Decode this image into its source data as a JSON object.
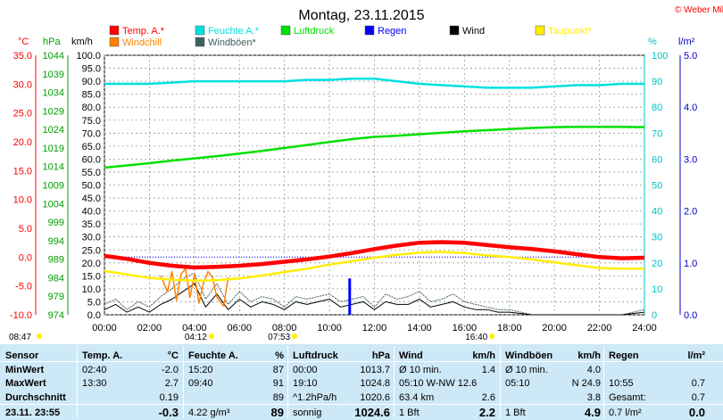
{
  "chart_data": {
    "type": "line",
    "title": "Montag, 23.11.2015",
    "copyright": "© Weber Mike",
    "axis_units": {
      "temp": "°C",
      "pressure": "hPa",
      "wind": "km/h",
      "humidity": "%",
      "rain": "l/m²"
    },
    "axes": {
      "temp": {
        "min": -10,
        "max": 35,
        "ticks": [
          "-10.0",
          "-5.0",
          "0.0",
          "5.0",
          "10.0",
          "15.0",
          "20.0",
          "25.0",
          "30.0",
          "35.0"
        ]
      },
      "pressure": {
        "min": 974,
        "max": 1044,
        "ticks": [
          "974",
          "979",
          "984",
          "989",
          "994",
          "999",
          "1004",
          "1009",
          "1014",
          "1019",
          "1024",
          "1029",
          "1034",
          "1039",
          "1044"
        ]
      },
      "wind": {
        "min": 0,
        "max": 100,
        "ticks": [
          "0.0",
          "5.0",
          "10.0",
          "15.0",
          "20.0",
          "25.0",
          "30.0",
          "35.0",
          "40.0",
          "45.0",
          "50.0",
          "55.0",
          "60.0",
          "65.0",
          "70.0",
          "75.0",
          "80.0",
          "85.0",
          "90.0",
          "95.0",
          "100.0"
        ]
      },
      "humidity": {
        "min": 0,
        "max": 100,
        "ticks": [
          "0",
          "10",
          "20",
          "30",
          "40",
          "50",
          "60",
          "70",
          "80",
          "90",
          "100"
        ]
      },
      "rain": {
        "min": 0,
        "max": 5,
        "ticks": [
          "0.0",
          "1.0",
          "2.0",
          "3.0",
          "4.0",
          "5.0"
        ]
      }
    },
    "x_ticks": [
      "00:00",
      "02:00",
      "04:00",
      "06:00",
      "08:00",
      "10:00",
      "12:00",
      "14:00",
      "16:00",
      "18:00",
      "20:00",
      "22:00",
      "24:00"
    ],
    "legend": [
      {
        "name": "Temp. A.*",
        "color": "#ff0000"
      },
      {
        "name": "Feuchte A.*",
        "color": "#00e0e0"
      },
      {
        "name": "Luftdruck",
        "color": "#00e000"
      },
      {
        "name": "Regen",
        "color": "#0000ff"
      },
      {
        "name": "Wind",
        "color": "#000000"
      },
      {
        "name": "Taupunkt*",
        "color": "#ffee00"
      },
      {
        "name": "Windchill",
        "color": "#ff8000"
      },
      {
        "name": "Windböen*",
        "color": "#406060"
      }
    ],
    "series": [
      {
        "name": "Temp. A.*",
        "axis": "temp",
        "color": "#ff0000",
        "x": [
          0,
          1,
          2,
          3,
          4,
          5,
          6,
          7,
          8,
          9,
          10,
          11,
          12,
          13,
          14,
          15,
          16,
          17,
          18,
          19,
          20,
          21,
          22,
          23,
          24
        ],
        "y": [
          0.2,
          -0.3,
          -1.0,
          -1.5,
          -1.8,
          -1.7,
          -1.5,
          -1.2,
          -0.8,
          -0.4,
          0.1,
          0.7,
          1.4,
          2.0,
          2.5,
          2.6,
          2.5,
          2.1,
          1.7,
          1.4,
          1.0,
          0.5,
          0.0,
          -0.2,
          -0.1
        ]
      },
      {
        "name": "Taupunkt*",
        "axis": "temp",
        "color": "#ffee00",
        "x": [
          0,
          1,
          2,
          3,
          4,
          5,
          6,
          7,
          8,
          9,
          10,
          11,
          12,
          13,
          14,
          15,
          16,
          17,
          18,
          19,
          20,
          21,
          22,
          23,
          24
        ],
        "y": [
          -2.4,
          -3.0,
          -3.6,
          -3.9,
          -4.1,
          -4.0,
          -3.7,
          -3.2,
          -2.6,
          -2.0,
          -1.3,
          -0.7,
          -0.1,
          0.4,
          0.8,
          0.9,
          0.7,
          0.3,
          0.0,
          -0.4,
          -0.9,
          -1.4,
          -1.9,
          -2.0,
          -2.0
        ]
      },
      {
        "name": "Windchill",
        "axis": "temp",
        "color": "#ff8000",
        "x": [
          2.5,
          2.8,
          3.0,
          3.2,
          3.4,
          3.6,
          3.8,
          4.0,
          4.2,
          4.4,
          4.6,
          4.8,
          5.0,
          5.3,
          5.5
        ],
        "y": [
          -3.2,
          -6.0,
          -2.5,
          -7.5,
          -3.0,
          -2.0,
          -7.0,
          -3.0,
          -8.0,
          -4.5,
          -2.5,
          -3.5,
          -7.0,
          -8.5,
          -3.5
        ]
      },
      {
        "name": "Feuchte A.*",
        "axis": "humidity",
        "color": "#00e0e0",
        "x": [
          0,
          1,
          2,
          3,
          4,
          5,
          6,
          7,
          8,
          9,
          10,
          11,
          12,
          13,
          14,
          15,
          16,
          17,
          18,
          19,
          20,
          21,
          22,
          23,
          24
        ],
        "y": [
          89,
          89,
          89,
          89.5,
          90,
          90,
          90,
          90,
          90,
          90.5,
          90.5,
          91,
          91,
          90,
          89,
          88.5,
          88,
          87.5,
          87.5,
          87.5,
          88,
          88.5,
          88.5,
          89,
          89
        ]
      },
      {
        "name": "Luftdruck",
        "axis": "pressure",
        "color": "#00e000",
        "x": [
          0,
          1,
          2,
          3,
          4,
          5,
          6,
          7,
          8,
          9,
          10,
          11,
          12,
          13,
          14,
          15,
          16,
          17,
          18,
          19,
          20,
          21,
          22,
          23,
          24
        ],
        "y": [
          1013.7,
          1014.3,
          1014.9,
          1015.6,
          1016.2,
          1016.8,
          1017.5,
          1018.2,
          1019.0,
          1019.8,
          1020.6,
          1021.4,
          1022.0,
          1022.3,
          1022.7,
          1023.1,
          1023.5,
          1023.8,
          1024.1,
          1024.4,
          1024.6,
          1024.7,
          1024.7,
          1024.7,
          1024.6
        ]
      },
      {
        "name": "Wind",
        "axis": "wind",
        "color": "#000000",
        "x": [
          0,
          0.5,
          1,
          1.5,
          2,
          2.5,
          3,
          3.5,
          4,
          4.5,
          5,
          5.5,
          6,
          6.5,
          7,
          7.5,
          8,
          8.5,
          9,
          9.5,
          10,
          10.5,
          11,
          11.5,
          12,
          12.5,
          13,
          13.5,
          14,
          14.5,
          15,
          15.5,
          16,
          16.5,
          17,
          17.5,
          18,
          19,
          20,
          21,
          22,
          23,
          24
        ],
        "y": [
          2,
          4,
          1,
          3,
          1,
          4,
          6,
          9,
          12,
          3,
          8,
          2,
          6,
          3,
          5,
          4,
          2,
          5,
          4,
          5,
          6,
          3,
          4,
          5,
          2,
          5,
          4,
          4,
          6,
          3,
          4,
          5,
          3,
          2,
          2,
          1,
          1,
          0,
          0,
          0,
          0,
          0,
          1
        ]
      },
      {
        "name": "Windböen*",
        "axis": "wind",
        "color": "#406060",
        "x": [
          0,
          0.5,
          1,
          1.5,
          2,
          2.5,
          3,
          3.5,
          4,
          4.5,
          5,
          5.5,
          6,
          6.5,
          7,
          7.5,
          8,
          8.5,
          9,
          9.5,
          10,
          10.5,
          11,
          11.5,
          12,
          12.5,
          13,
          13.5,
          14,
          14.5,
          15,
          15.5,
          16,
          16.5,
          17,
          17.5,
          18,
          19,
          20,
          21,
          22,
          23,
          24
        ],
        "y": [
          4,
          6,
          2,
          5,
          3,
          7,
          10,
          14,
          16,
          6,
          12,
          4,
          9,
          5,
          7,
          6,
          3,
          7,
          6,
          7,
          8,
          5,
          6,
          7,
          3,
          8,
          6,
          7,
          9,
          5,
          6,
          8,
          5,
          4,
          3,
          2,
          2,
          0,
          0,
          0,
          0,
          0,
          2
        ]
      }
    ],
    "rain_bar": {
      "x": 10.9,
      "value": 0.7
    },
    "dotted_reference": {
      "axis": "temp",
      "value": 0.0
    },
    "markers": [
      {
        "label": "08:47",
        "x": 0.3
      },
      {
        "label": "04:12",
        "x": 4.2
      },
      {
        "label": "07:53",
        "x": 7.9
      },
      {
        "label": "16:40",
        "x": 16.67
      }
    ]
  },
  "table": {
    "headers": [
      {
        "label": "Sensor",
        "unit": ""
      },
      {
        "label": "Temp. A.",
        "unit": "°C"
      },
      {
        "label": "Feuchte A.",
        "unit": "%"
      },
      {
        "label": "Luftdruck",
        "unit": "hPa"
      },
      {
        "label": "Wind",
        "unit": "km/h"
      },
      {
        "label": "Windböen",
        "unit": "km/h"
      },
      {
        "label": "Regen",
        "unit": "l/m²"
      }
    ],
    "rows": [
      {
        "label": "MinWert",
        "cells": [
          [
            "02:40",
            "-2.0"
          ],
          [
            "15:20",
            "87"
          ],
          [
            "00:00",
            "1013.7"
          ],
          [
            "Ø 10 min.",
            "1.4"
          ],
          [
            "Ø 10 min.",
            "4.0"
          ],
          [
            "",
            ""
          ]
        ]
      },
      {
        "label": "MaxWert",
        "cells": [
          [
            "13:30",
            "2.7"
          ],
          [
            "09:40",
            "91"
          ],
          [
            "19:10",
            "1024.8"
          ],
          [
            "05:10   W-NW 12.6",
            ""
          ],
          [
            "05:10",
            "N 24.9"
          ],
          [
            "10:55",
            "0.7"
          ]
        ]
      },
      {
        "label": "Durchschnitt",
        "cells": [
          [
            "",
            "0.19"
          ],
          [
            "",
            "89"
          ],
          [
            "^1.2hPa/h",
            "1020.6"
          ],
          [
            "63.4 km",
            "2.6"
          ],
          [
            "",
            "3.8"
          ],
          [
            "Gesamt:",
            "0.7"
          ]
        ]
      },
      {
        "label": "23.11.  23:55",
        "cells": [
          [
            "",
            "-0.3"
          ],
          [
            "4.22 g/m³",
            "89"
          ],
          [
            "sonnig",
            "1024.6"
          ],
          [
            "1 Bft",
            "2.2"
          ],
          [
            "1 Bft",
            "4.9"
          ],
          [
            "0.7 l/m²",
            "0.0"
          ]
        ]
      }
    ]
  }
}
